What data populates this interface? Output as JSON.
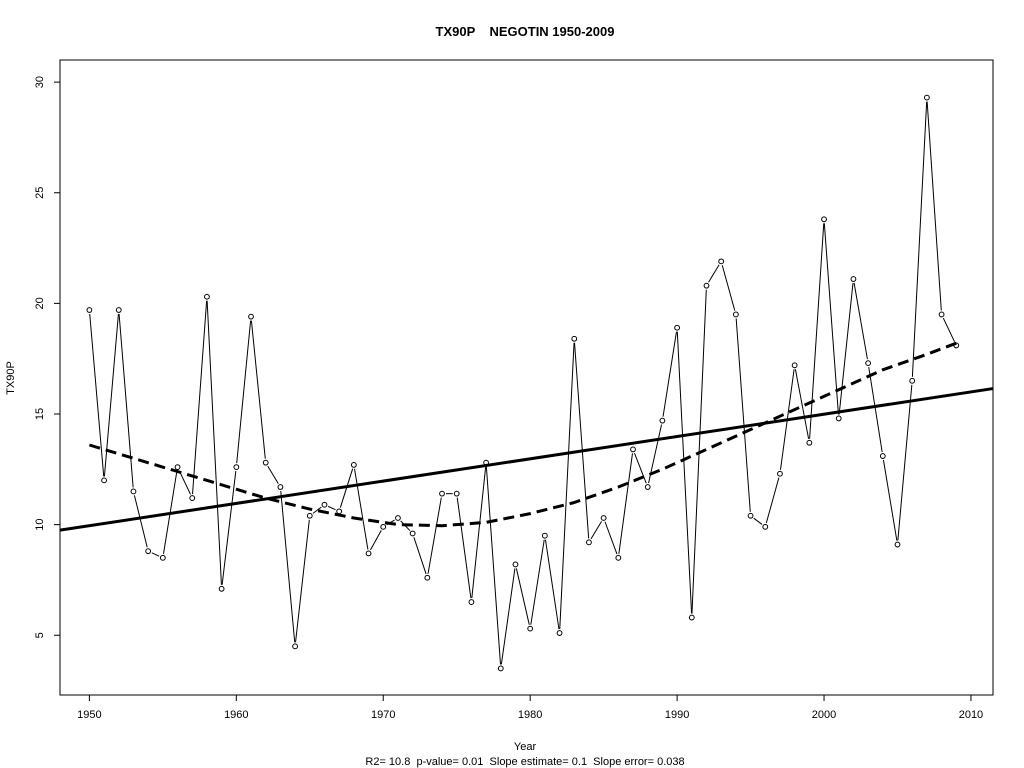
{
  "chart_data": {
    "type": "line",
    "title": "TX90P    NEGOTIN 1950-2009",
    "xlabel": "Year",
    "ylabel": "TX90P",
    "footer": "R2= 10.8  p-value= 0.01  Slope estimate= 0.1  Slope error= 0.038",
    "xlim": [
      1948,
      2011.5
    ],
    "ylim": [
      2.3,
      31.0
    ],
    "xticks": [
      1950,
      1960,
      1970,
      1980,
      1990,
      2000,
      2010
    ],
    "yticks": [
      5,
      10,
      15,
      20,
      25,
      30
    ],
    "grid": false,
    "series": [
      {
        "type": "line-points",
        "x": [
          1950,
          1951,
          1952,
          1953,
          1954,
          1955,
          1956,
          1957,
          1958,
          1959,
          1960,
          1961,
          1962,
          1963,
          1964,
          1965,
          1966,
          1967,
          1968,
          1969,
          1970,
          1971,
          1972,
          1973,
          1974,
          1975,
          1976,
          1977,
          1978,
          1979,
          1980,
          1981,
          1982,
          1983,
          1984,
          1985,
          1986,
          1987,
          1988,
          1989,
          1990,
          1991,
          1992,
          1993,
          1994,
          1995,
          1996,
          1997,
          1998,
          1999,
          2000,
          2001,
          2002,
          2003,
          2004,
          2005,
          2006,
          2007,
          2008,
          2009
        ],
        "values": [
          19.7,
          12.0,
          19.7,
          11.5,
          8.8,
          8.5,
          12.6,
          11.2,
          20.3,
          7.1,
          12.6,
          19.4,
          12.8,
          11.7,
          4.5,
          10.4,
          10.9,
          10.6,
          12.7,
          8.7,
          9.9,
          10.3,
          9.6,
          7.6,
          11.4,
          11.4,
          6.5,
          12.8,
          3.5,
          8.2,
          5.3,
          9.5,
          5.1,
          18.4,
          9.2,
          10.3,
          8.5,
          13.4,
          11.7,
          14.7,
          18.9,
          5.8,
          20.8,
          21.9,
          19.5,
          10.4,
          9.9,
          12.3,
          17.2,
          13.7,
          23.8,
          14.8,
          21.1,
          17.3,
          13.1,
          9.1,
          16.5,
          29.3,
          19.5,
          18.1
        ]
      },
      {
        "type": "linear-trend",
        "x": [
          1948,
          2011.5
        ],
        "values": [
          9.75,
          16.15
        ]
      },
      {
        "type": "smoothed-trend",
        "x": [
          1950,
          1953,
          1956,
          1959,
          1962,
          1965,
          1968,
          1971,
          1974,
          1977,
          1980,
          1983,
          1986,
          1989,
          1992,
          1995,
          1998,
          2001,
          2004,
          2007,
          2009
        ],
        "values": [
          13.6,
          13.0,
          12.4,
          11.8,
          11.2,
          10.7,
          10.3,
          10.0,
          9.95,
          10.1,
          10.5,
          11.0,
          11.7,
          12.5,
          13.4,
          14.3,
          15.2,
          16.1,
          17.0,
          17.7,
          18.2
        ]
      }
    ]
  }
}
